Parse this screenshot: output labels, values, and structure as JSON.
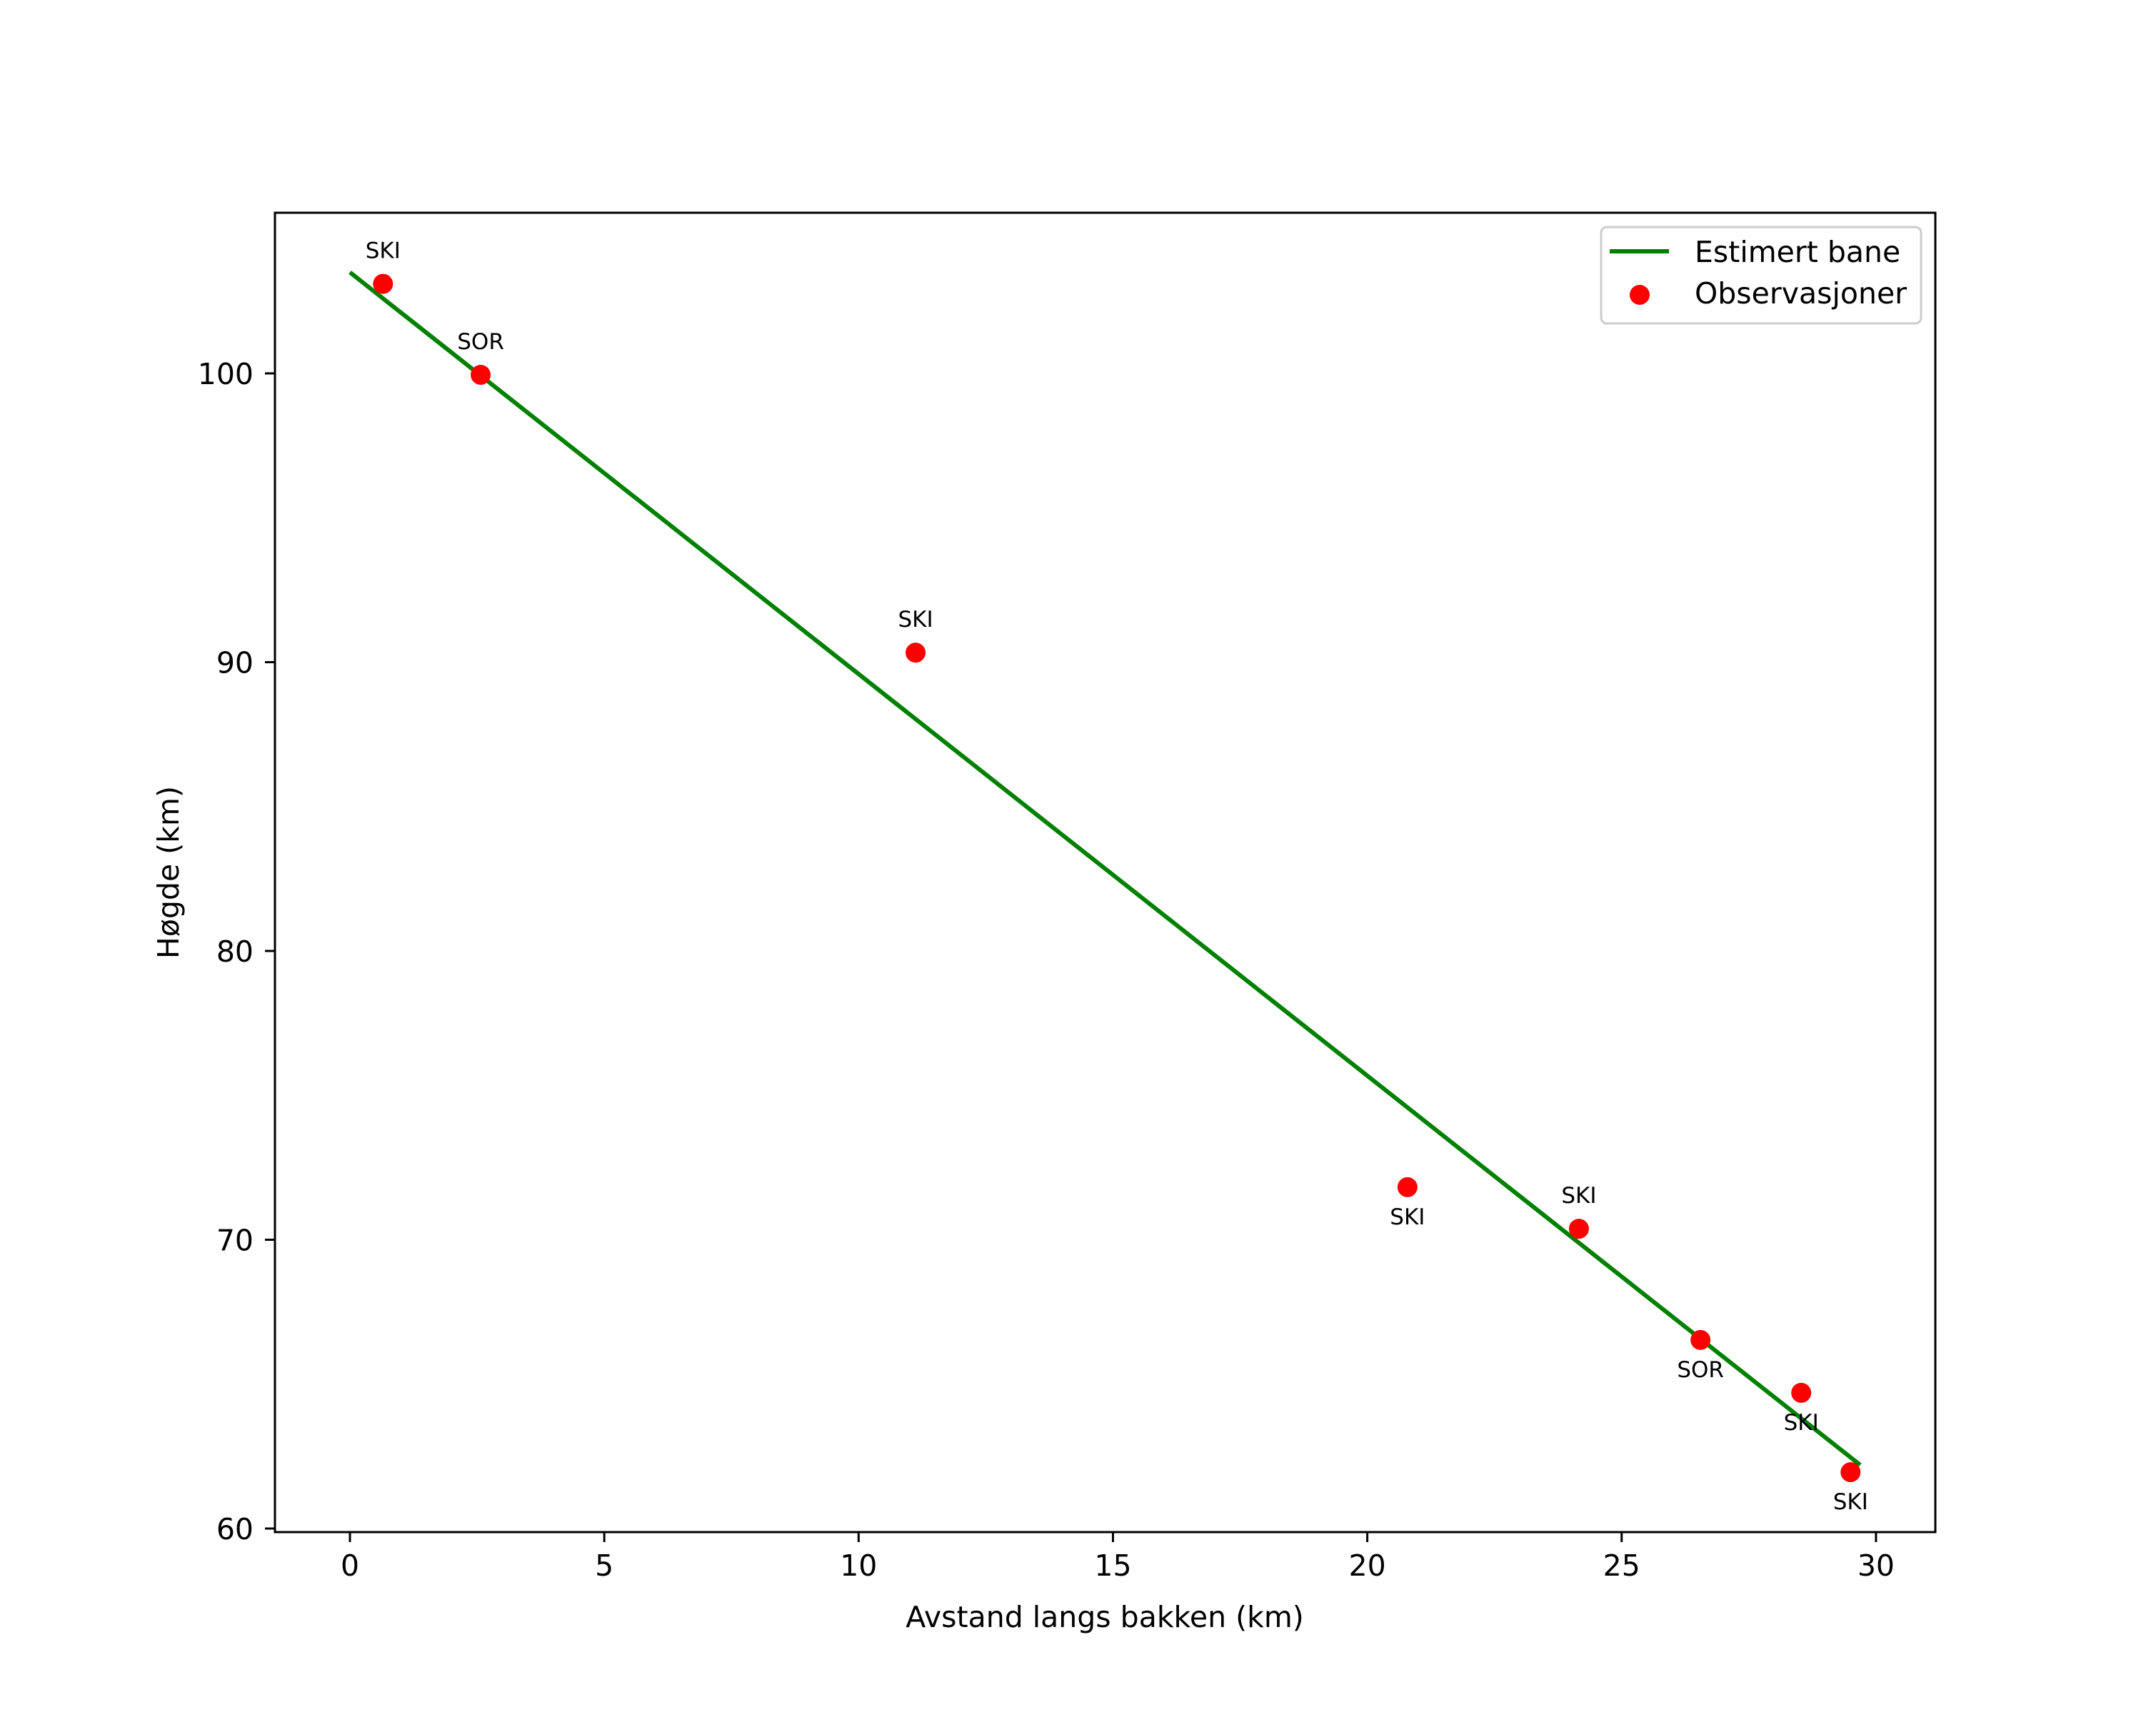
{
  "chart_data": {
    "type": "scatter",
    "title": "",
    "xlabel": "Avstand langs bakken (km)",
    "ylabel": "Høgde (km)",
    "xlim": [
      -1.5,
      31.2
    ],
    "ylim": [
      59.9,
      105.6
    ],
    "xticks": [
      0,
      5,
      10,
      15,
      20,
      25,
      30
    ],
    "yticks": [
      60,
      70,
      80,
      90,
      100
    ],
    "grid": false,
    "legend_position": "upper right",
    "colors": {
      "line": "#008000",
      "markers": "#ff0000"
    },
    "series": [
      {
        "name": "Estimert bane",
        "kind": "line",
        "x": [
          0.0,
          29.69
        ],
        "y": [
          103.5,
          62.2
        ]
      },
      {
        "name": "Observasjoner",
        "kind": "scatter",
        "x": [
          0.65,
          2.57,
          11.12,
          20.79,
          24.16,
          26.55,
          28.53,
          29.5
        ],
        "y": [
          103.1,
          99.95,
          90.33,
          71.82,
          70.38,
          66.53,
          64.7,
          61.95
        ],
        "labels": [
          "SKI",
          "SOR",
          "SKI",
          "SKI",
          "SKI",
          "SOR",
          "SKI",
          "SKI"
        ],
        "label_positions": [
          "above",
          "above",
          "above",
          "below",
          "above",
          "below",
          "below",
          "below"
        ]
      }
    ]
  },
  "legend": {
    "items": [
      {
        "label": "Estimert bane",
        "kind": "line"
      },
      {
        "label": "Observasjoner",
        "kind": "marker"
      }
    ]
  }
}
